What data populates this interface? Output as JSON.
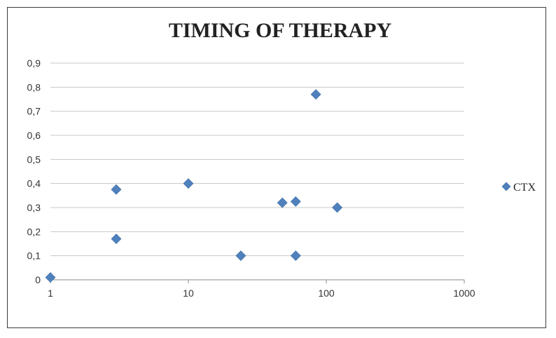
{
  "chart_data": {
    "type": "scatter",
    "title": "TIMING OF THERAPY",
    "xlabel": "",
    "ylabel": "",
    "x_scale": "log",
    "x_ticks": [
      "1",
      "10",
      "100",
      "1000"
    ],
    "x_tick_values": [
      1,
      10,
      100,
      1000
    ],
    "xlim": [
      1,
      1000
    ],
    "y_ticks": [
      "0",
      "0,1",
      "0,2",
      "0,3",
      "0,4",
      "0,5",
      "0,6",
      "0,7",
      "0,8",
      "0,9"
    ],
    "y_tick_values": [
      0,
      0.1,
      0.2,
      0.3,
      0.4,
      0.5,
      0.6,
      0.7,
      0.8,
      0.9
    ],
    "ylim": [
      0,
      0.9
    ],
    "grid": true,
    "legend_position": "right",
    "series": [
      {
        "name": "CTX",
        "color": "#4f81bd",
        "marker": "diamond",
        "points": [
          {
            "x": 1,
            "y": 0.01
          },
          {
            "x": 3,
            "y": 0.375
          },
          {
            "x": 3,
            "y": 0.17
          },
          {
            "x": 10,
            "y": 0.4
          },
          {
            "x": 24,
            "y": 0.1
          },
          {
            "x": 48,
            "y": 0.32
          },
          {
            "x": 60,
            "y": 0.325
          },
          {
            "x": 60,
            "y": 0.1
          },
          {
            "x": 84,
            "y": 0.77
          },
          {
            "x": 120,
            "y": 0.3
          }
        ]
      }
    ]
  }
}
